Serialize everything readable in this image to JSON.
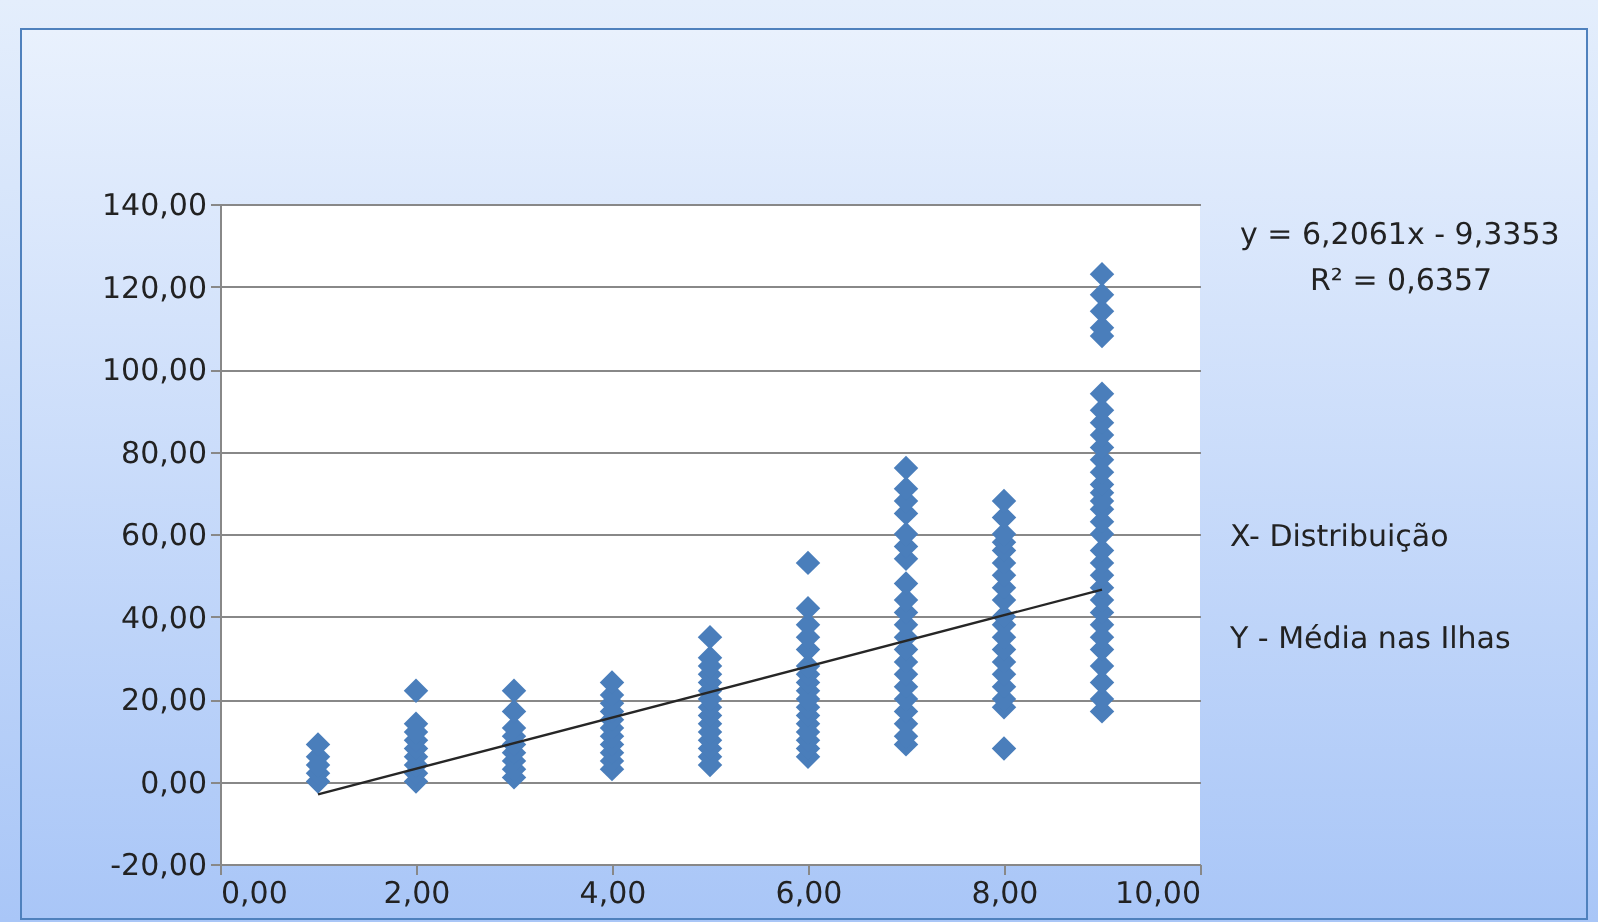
{
  "chart_data": {
    "type": "scatter",
    "xlim": [
      0,
      10
    ],
    "xticks": [
      {
        "value": 0,
        "label": "0,00"
      },
      {
        "value": 2,
        "label": "2,00"
      },
      {
        "value": 4,
        "label": "4,00"
      },
      {
        "value": 6,
        "label": "6,00"
      },
      {
        "value": 8,
        "label": "8,00"
      },
      {
        "value": 10,
        "label": "10,00"
      }
    ],
    "ylim": [
      -20,
      140
    ],
    "yticks": [
      {
        "value": -20,
        "label": "-20,00"
      },
      {
        "value": 0,
        "label": "0,00"
      },
      {
        "value": 20,
        "label": "20,00"
      },
      {
        "value": 40,
        "label": "40,00"
      },
      {
        "value": 60,
        "label": "60,00"
      },
      {
        "value": 80,
        "label": "80,00"
      },
      {
        "value": 100,
        "label": "100,00"
      },
      {
        "value": 120,
        "label": "120,00"
      },
      {
        "value": 140,
        "label": "140,00"
      }
    ],
    "grid": "y",
    "marker": "diamond",
    "annotations": [
      "y = 6,2061x - 9,3353",
      "R² = 0,6357",
      "X- Distribuição",
      "Y - Média nas Ilhas"
    ],
    "series": [
      {
        "color": "#4a7ebb",
        "x": [
          1,
          1,
          1,
          1,
          1,
          2,
          2,
          2,
          2,
          2,
          2,
          2,
          2,
          2,
          3,
          3,
          3,
          3,
          3,
          3,
          3,
          3,
          3,
          4,
          4,
          4,
          4,
          4,
          4,
          4,
          4,
          4,
          4,
          4,
          5,
          5,
          5,
          5,
          5,
          5,
          5,
          5,
          5,
          5,
          5,
          5,
          5,
          5,
          5,
          6,
          6,
          6,
          6,
          6,
          6,
          6,
          6,
          6,
          6,
          6,
          6,
          6,
          6,
          6,
          6,
          6,
          7,
          7,
          7,
          7,
          7,
          7,
          7,
          7,
          7,
          7,
          7,
          7,
          7,
          7,
          7,
          7,
          7,
          7,
          7,
          7,
          7,
          8,
          8,
          8,
          8,
          8,
          8,
          8,
          8,
          8,
          8,
          8,
          8,
          8,
          8,
          8,
          8,
          8,
          8,
          8,
          9,
          9,
          9,
          9,
          9,
          9,
          9,
          9,
          9,
          9,
          9,
          9,
          9,
          9,
          9,
          9,
          9,
          9,
          9,
          9,
          9,
          9,
          9,
          9,
          9,
          9,
          9,
          9,
          9,
          9,
          9
        ],
        "values": [
          0,
          2,
          4,
          6,
          9,
          0,
          2,
          4,
          6,
          8,
          10,
          12,
          14,
          22,
          1,
          3,
          5,
          7,
          9,
          11,
          13,
          17,
          22,
          3,
          5,
          7,
          9,
          11,
          13,
          15,
          17,
          19,
          21,
          24,
          4,
          6,
          8,
          10,
          12,
          14,
          16,
          18,
          20,
          22,
          24,
          26,
          28,
          30,
          35,
          6,
          8,
          10,
          12,
          14,
          16,
          18,
          20,
          22,
          24,
          26,
          28,
          32,
          35,
          38,
          42,
          53,
          9,
          11,
          14,
          17,
          20,
          23,
          26,
          29,
          32,
          35,
          38,
          41,
          44,
          48,
          54,
          57,
          60,
          65,
          68,
          71,
          76,
          8,
          18,
          20,
          23,
          26,
          29,
          32,
          35,
          38,
          40,
          44,
          47,
          50,
          53,
          56,
          58,
          60,
          64,
          68,
          17,
          20,
          24,
          28,
          32,
          35,
          38,
          41,
          44,
          47,
          50,
          53,
          56,
          60,
          63,
          66,
          68,
          70,
          72,
          75,
          78,
          81,
          84,
          87,
          90,
          94,
          108,
          110,
          114,
          118,
          123
        ]
      },
      {
        "type": "line",
        "marker": "none",
        "color": "#262626",
        "x": [
          1,
          9
        ],
        "values": [
          -3.1,
          46.5
        ]
      }
    ]
  }
}
